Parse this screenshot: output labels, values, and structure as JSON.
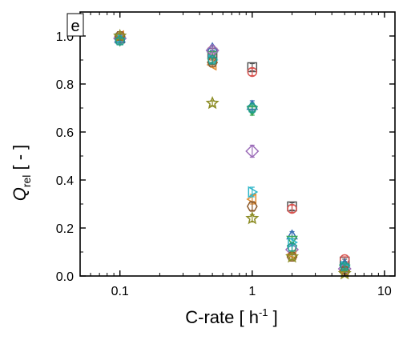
{
  "panel": {
    "tag": "e"
  },
  "chart_data": {
    "type": "scatter",
    "xlabel": {
      "main": "C-rate [ h",
      "sup": "-1",
      "tail": " ]"
    },
    "ylabel": {
      "main": "Q",
      "sub": "rel",
      "tail": " [ - ]"
    },
    "x_scale": "log",
    "xlim": [
      0.05,
      12
    ],
    "ylim": [
      0,
      1.1
    ],
    "grid": false,
    "legend": "none",
    "x_ticks": [
      {
        "value": 0.1,
        "label": "0.1"
      },
      {
        "value": 1,
        "label": "1"
      },
      {
        "value": 10,
        "label": "10"
      }
    ],
    "y_ticks": [
      {
        "value": 0.0,
        "label": "0.0"
      },
      {
        "value": 0.2,
        "label": "0.2"
      },
      {
        "value": 0.4,
        "label": "0.4"
      },
      {
        "value": 0.6,
        "label": "0.6"
      },
      {
        "value": 0.8,
        "label": "0.8"
      },
      {
        "value": 1.0,
        "label": "1.0"
      }
    ],
    "x": [
      0.1,
      0.5,
      1,
      2,
      5
    ],
    "series": [
      {
        "marker": "square",
        "color": "#555555",
        "y": [
          0.99,
          0.93,
          0.87,
          0.29,
          0.06
        ],
        "err": [
          0.01,
          0.01,
          0.015,
          0.015,
          0.01
        ]
      },
      {
        "marker": "circle",
        "color": "#d9534f",
        "y": [
          0.99,
          0.94,
          0.85,
          0.28,
          0.07
        ],
        "err": [
          0.01,
          0.01,
          0.015,
          0.015,
          0.01
        ]
      },
      {
        "marker": "triangle-up",
        "color": "#3a6fb5",
        "y": [
          0.99,
          0.95,
          0.71,
          0.17,
          0.05
        ],
        "err": [
          0.01,
          0.01,
          0.02,
          0.015,
          0.01
        ]
      },
      {
        "marker": "triangle-down",
        "color": "#3aa655",
        "y": [
          0.98,
          0.92,
          0.69,
          0.15,
          0.03
        ],
        "err": [
          0.01,
          0.01,
          0.02,
          0.015,
          0.01
        ]
      },
      {
        "marker": "diamond",
        "color": "#9b6bb8",
        "y": [
          0.99,
          0.94,
          0.52,
          0.11,
          0.03
        ],
        "err": [
          0.01,
          0.01,
          0.025,
          0.015,
          0.01
        ]
      },
      {
        "marker": "triangle-left",
        "color": "#e08a2e",
        "y": [
          1.0,
          0.88,
          0.32,
          0.09,
          0.02
        ],
        "err": [
          0.01,
          0.01,
          0.02,
          0.01,
          0.01
        ]
      },
      {
        "marker": "triangle-right",
        "color": "#2bb5c8",
        "y": [
          0.99,
          0.9,
          0.35,
          0.14,
          0.04
        ],
        "err": [
          0.01,
          0.01,
          0.02,
          0.015,
          0.01
        ]
      },
      {
        "marker": "hexagon",
        "color": "#8c5a2b",
        "y": [
          1.0,
          0.89,
          0.29,
          0.08,
          0.02
        ],
        "err": [
          0.01,
          0.01,
          0.02,
          0.01,
          0.01
        ]
      },
      {
        "marker": "star",
        "color": "#8c8c24",
        "y": [
          1.0,
          0.72,
          0.24,
          0.08,
          0.01
        ],
        "err": [
          0.01,
          0.01,
          0.015,
          0.01,
          0.01
        ]
      },
      {
        "marker": "pentagon",
        "color": "#1f9c8c",
        "y": [
          0.98,
          0.9,
          0.7,
          0.12,
          0.04
        ],
        "err": [
          0.01,
          0.01,
          0.02,
          0.015,
          0.01
        ]
      }
    ]
  }
}
